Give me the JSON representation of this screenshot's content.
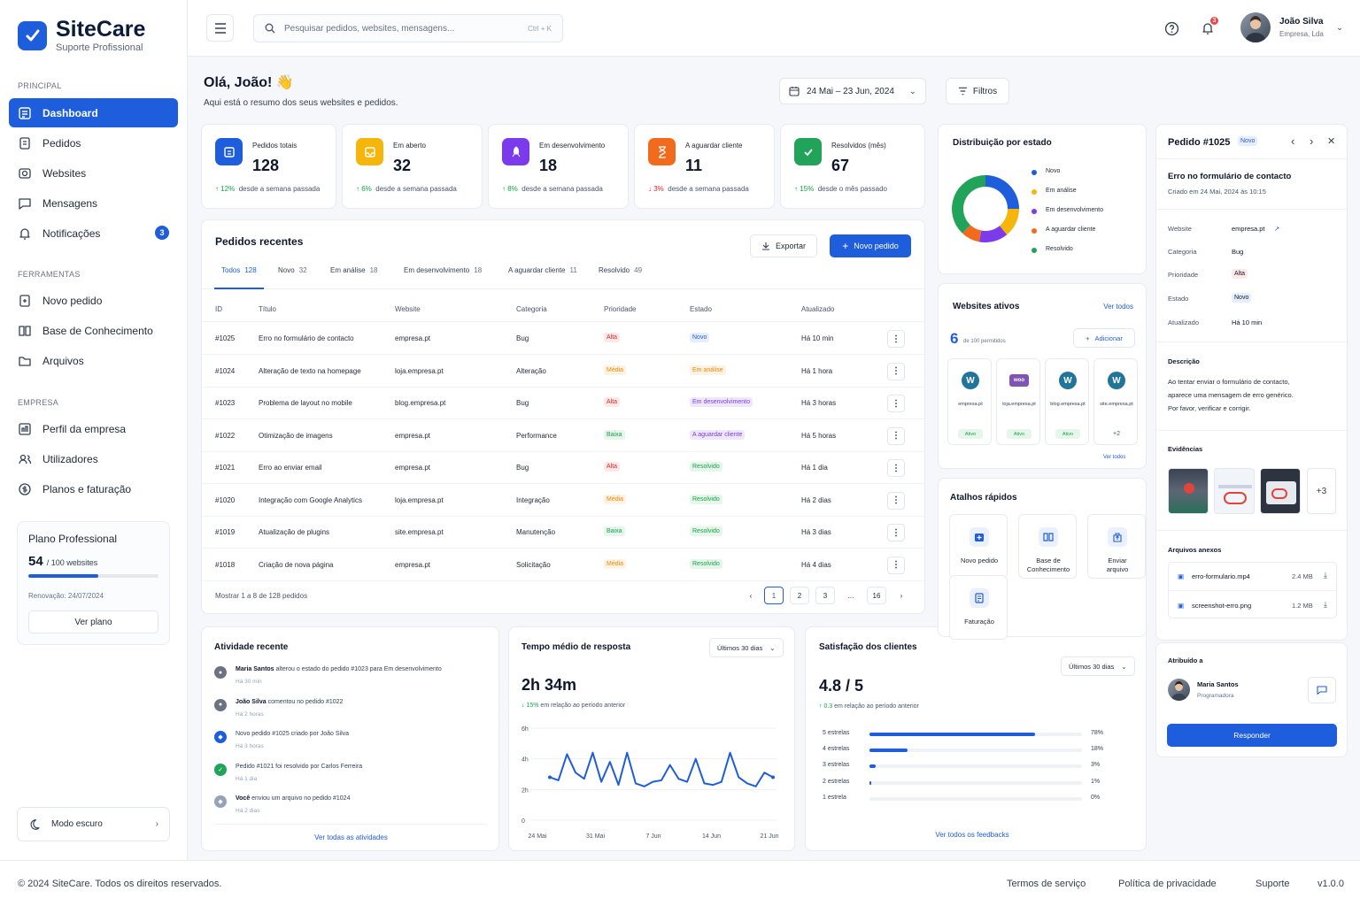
{
  "brand": {
    "name": "SiteCare",
    "tagline": "Suporte Profissional",
    "color": "#1e5ddb"
  },
  "sidebar": {
    "sections": [
      "PRINCIPAL",
      "FERRAMENTAS",
      "EMPRESA"
    ],
    "items": [
      {
        "label": "Dashboard",
        "icon": "dashboard-icon"
      },
      {
        "label": "Pedidos",
        "icon": "orders-icon"
      },
      {
        "label": "Websites",
        "icon": "globe-icon"
      },
      {
        "label": "Mensagens",
        "icon": "chat-icon"
      },
      {
        "label": "Notificações",
        "icon": "bell-icon",
        "badge": "3"
      },
      {
        "label": "Novo pedido",
        "icon": "new-order-icon"
      },
      {
        "label": "Base de Conhecimento",
        "icon": "book-icon"
      },
      {
        "label": "Arquivos",
        "icon": "folder-icon"
      },
      {
        "label": "Perfil da empresa",
        "icon": "company-icon"
      },
      {
        "label": "Utilizadores",
        "icon": "users-icon"
      },
      {
        "label": "Planos e faturação",
        "icon": "billing-icon"
      }
    ],
    "plan": {
      "title": "Plano Professional",
      "used": "54",
      "limit": "/ 100 websites",
      "usage_fraction": 0.54,
      "renewal": "Renovação: 24/07/2024",
      "button": "Ver plano"
    },
    "dark_mode": "Modo escuro"
  },
  "header": {
    "search_placeholder": "Pesquisar pedidos, websites, mensagens...",
    "shortcut": "Ctrl + K",
    "notif_count": "3",
    "user": {
      "name": "João Silva",
      "company": "Empresa, Lda"
    }
  },
  "greeting": {
    "title": "Olá, João! 👋",
    "subtitle": "Aqui está o resumo dos seus websites e pedidos."
  },
  "date_range": "24 Mai – 23 Jun, 2024",
  "filters": "Filtros",
  "stats": [
    {
      "label": "Pedidos totais",
      "value": "128",
      "trend": "↑ 12%",
      "note": "desde a semana passada",
      "dir": "up",
      "color": "#1e5ddb",
      "icon": "orders-icon"
    },
    {
      "label": "Em aberto",
      "value": "32",
      "trend": "↑ 6%",
      "note": "desde a semana passada",
      "dir": "up",
      "color": "#f5b50a",
      "icon": "inbox-icon"
    },
    {
      "label": "Em desenvolvimento",
      "value": "18",
      "trend": "↑ 8%",
      "note": "desde a semana passada",
      "dir": "up",
      "color": "#7c3aed",
      "icon": "rocket-icon"
    },
    {
      "label": "A aguardar cliente",
      "value": "11",
      "trend": "↓ 3%",
      "note": "desde a semana passada",
      "dir": "down",
      "color": "#f26b1d",
      "icon": "hourglass-icon"
    },
    {
      "label": "Resolvidos (mês)",
      "value": "67",
      "trend": "↑ 15%",
      "note": "desde o mês passado",
      "dir": "up",
      "color": "#22a35a",
      "icon": "check-icon"
    }
  ],
  "orders": {
    "title": "Pedidos recentes",
    "export": "Exportar",
    "new": "Novo pedido",
    "tabs": [
      {
        "label": "Todos",
        "count": "128"
      },
      {
        "label": "Novo",
        "count": "32"
      },
      {
        "label": "Em análise",
        "count": "18"
      },
      {
        "label": "Em desenvolvimento",
        "count": "18"
      },
      {
        "label": "A aguardar cliente",
        "count": "11"
      },
      {
        "label": "Resolvido",
        "count": "49"
      }
    ],
    "columns": [
      "ID",
      "Título",
      "Website",
      "Categoria",
      "Prioridade",
      "Estado",
      "Atualizado"
    ],
    "rows": [
      {
        "id": "#1025",
        "title": "Erro no formulário de contacto",
        "site": "empresa.pt",
        "cat": "Bug",
        "prio": "Alta",
        "state": "Novo",
        "upd": "Há 10 min"
      },
      {
        "id": "#1024",
        "title": "Alteração de texto na homepage",
        "site": "loja.empresa.pt",
        "cat": "Alteração",
        "prio": "Média",
        "state": "Em análise",
        "upd": "Há 1 hora"
      },
      {
        "id": "#1023",
        "title": "Problema de layout no mobile",
        "site": "blog.empresa.pt",
        "cat": "Bug",
        "prio": "Alta",
        "state": "Em desenvolvimento",
        "upd": "Há 3 horas"
      },
      {
        "id": "#1022",
        "title": "Otimização de imagens",
        "site": "empresa.pt",
        "cat": "Performance",
        "prio": "Baixa",
        "state": "A aguardar cliente",
        "upd": "Há 5 horas"
      },
      {
        "id": "#1021",
        "title": "Erro ao enviar email",
        "site": "empresa.pt",
        "cat": "Bug",
        "prio": "Alta",
        "state": "Resolvido",
        "upd": "Há 1 dia"
      },
      {
        "id": "#1020",
        "title": "Integração com Google Analytics",
        "site": "loja.empresa.pt",
        "cat": "Integração",
        "prio": "Média",
        "state": "Resolvido",
        "upd": "Há 2 dias"
      },
      {
        "id": "#1019",
        "title": "Atualização de plugins",
        "site": "site.empresa.pt",
        "cat": "Manutenção",
        "prio": "Baixa",
        "state": "Resolvido",
        "upd": "Há 3 dias"
      },
      {
        "id": "#1018",
        "title": "Criação de nova página",
        "site": "empresa.pt",
        "cat": "Solicitação",
        "prio": "Média",
        "state": "Resolvido",
        "upd": "Há 4 dias"
      }
    ],
    "showing": "Mostrar 1 a 8 de 128 pedidos",
    "pages": [
      "1",
      "2",
      "3",
      "...",
      "16"
    ]
  },
  "activity": {
    "title": "Atividade recente",
    "items": [
      {
        "who": "Maria Santos",
        "text": " alterou o estado do pedido #1023 para Em desenvolvimento",
        "time": "Há 30 min",
        "color": "#6b7280"
      },
      {
        "who": "João Silva",
        "text": " comentou no pedido #1022",
        "time": "Há 2 horas",
        "color": "#6b7280"
      },
      {
        "who": "",
        "text": "Novo pedido #1025 criado por João Silva",
        "time": "Há 3 horas",
        "color": "#1e5ddb"
      },
      {
        "who": "",
        "text": "Pedido #1021 foi resolvido por Carlos Ferreira",
        "time": "Há 1 dia",
        "color": "#22a35a"
      },
      {
        "who": "Você",
        "text": " enviou um arquivo no pedido #1024",
        "time": "Há 2 dias",
        "color": "#94a3b8"
      }
    ],
    "link": "Ver todas as atividades"
  },
  "response": {
    "title": "Tempo médio de resposta",
    "period": "Últimos 30 dias",
    "value": "2h 34m",
    "trend": "↓ 15%",
    "note": "em relação ao período anterior"
  },
  "chart_data": {
    "type": "line",
    "title": "Tempo médio de resposta",
    "x_labels": [
      "24 Mai",
      "31 Mai",
      "7 Jun",
      "14 Jun",
      "21 Jun"
    ],
    "y_ticks": [
      "0",
      "2h",
      "4h",
      "6h"
    ],
    "ylim": [
      0,
      6
    ],
    "values": [
      2.8,
      2.6,
      4.3,
      3.1,
      2.7,
      4.4,
      2.5,
      3.8,
      2.3,
      4.4,
      2.4,
      2.2,
      2.5,
      2.6,
      3.6,
      2.7,
      2.5,
      4.0,
      2.4,
      2.3,
      2.5,
      4.4,
      2.8,
      2.4,
      2.2,
      3.1,
      2.8
    ],
    "color": "#1e5ddb"
  },
  "satisfaction": {
    "title": "Satisfação dos clientes",
    "period": "Últimos 30 dias",
    "value": "4.8 / 5",
    "trend": "↑ 0.3",
    "note": "em relação ao período anterior",
    "rows": [
      {
        "label": "5 estrelas",
        "pct": "78%",
        "v": 78
      },
      {
        "label": "4 estrelas",
        "pct": "18%",
        "v": 18
      },
      {
        "label": "3 estrelas",
        "pct": "3%",
        "v": 3
      },
      {
        "label": "2 estrelas",
        "pct": "1%",
        "v": 1
      },
      {
        "label": "1 estrela",
        "pct": "0%",
        "v": 0
      }
    ],
    "link": "Ver todos os feedbacks"
  },
  "distribution": {
    "title": "Distribuição por estado",
    "items": [
      {
        "label": "Novo",
        "value": "32 (25%)",
        "v": 25,
        "color": "#1e5ddb"
      },
      {
        "label": "Em análise",
        "value": "18 (14%)",
        "v": 14,
        "color": "#f5b50a"
      },
      {
        "label": "Em desenvolvimento",
        "value": "18 (14%)",
        "v": 14,
        "color": "#7c3aed"
      },
      {
        "label": "A aguardar cliente",
        "value": "11 (9%)",
        "v": 9,
        "color": "#f26b1d"
      },
      {
        "label": "Resolvido",
        "value": "49 (38%)",
        "v": 38,
        "color": "#22a35a"
      }
    ]
  },
  "websites": {
    "title": "Websites ativos",
    "view_all": "Ver todos",
    "count": "6",
    "limit": "de 100 permitidos",
    "add": "Adicionar",
    "sites": [
      {
        "name": "empresa.pt",
        "status": "Ativo",
        "logo": "W",
        "color": "#21759b"
      },
      {
        "name": "loja.empresa.pt",
        "status": "Ativo",
        "logo": "woo",
        "color": "#7f54b3"
      },
      {
        "name": "blog.empresa.pt",
        "status": "Ativo",
        "logo": "W",
        "color": "#21759b"
      },
      {
        "name": "site.empresa.pt",
        "status": "+2",
        "logo": "W",
        "color": "#21759b"
      }
    ],
    "view_all_bottom": "Ver todos"
  },
  "shortcuts": {
    "title": "Atalhos rápidos",
    "items": [
      "Novo pedido",
      "Base de Conhecimento",
      "Enviar arquivo",
      "Faturação"
    ]
  },
  "detail": {
    "title": "Pedido #1025",
    "badge": "Novo",
    "subject": "Erro no formulário de contacto",
    "created": "Criado em 24 Mai, 2024 às 10:15",
    "fields": [
      {
        "k": "Website",
        "v": "empresa.pt"
      },
      {
        "k": "Categoria",
        "v": "Bug"
      },
      {
        "k": "Prioridade",
        "v": "Alta"
      },
      {
        "k": "Estado",
        "v": "Novo"
      },
      {
        "k": "Atualizado",
        "v": "Há 10 min"
      }
    ],
    "desc_title": "Descrição",
    "description": [
      "Ao tentar enviar o formulário de contacto,",
      "aparece uma mensagem de erro genérico.",
      "Por favor, verificar e corrigir."
    ],
    "evidence_title": "Evidências",
    "evidence_more": "+3",
    "files_title": "Arquivos anexos",
    "files": [
      {
        "name": "erro-formulario.mp4",
        "size": "2.4 MB"
      },
      {
        "name": "screenshot-erro.png",
        "size": "1.2 MB"
      }
    ],
    "assigned_title": "Atribuído a",
    "assignee": {
      "name": "Maria Santos",
      "role": "Programadora"
    },
    "reply": "Responder"
  },
  "footer": {
    "copyright": "© 2024 SiteCare. Todos os direitos reservados.",
    "links": [
      "Termos de serviço",
      "Política de privacidade",
      "Suporte"
    ],
    "version": "v1.0.0"
  }
}
